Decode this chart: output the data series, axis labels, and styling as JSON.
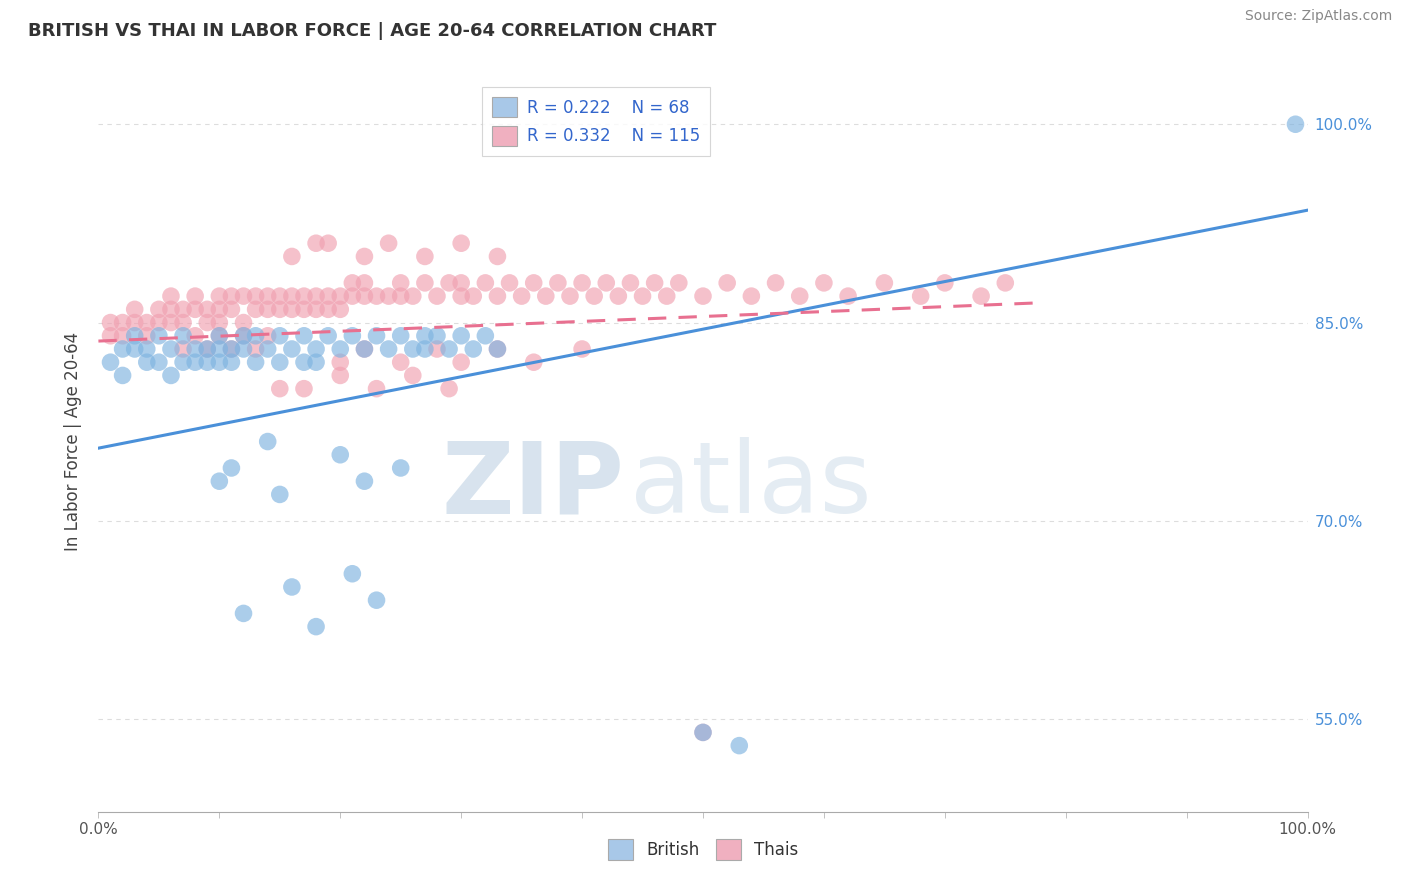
{
  "title": "BRITISH VS THAI IN LABOR FORCE | AGE 20-64 CORRELATION CHART",
  "source_text": "Source: ZipAtlas.com",
  "ylabel": "In Labor Force | Age 20-64",
  "xlim": [
    0.0,
    1.0
  ],
  "ylim": [
    0.48,
    1.04
  ],
  "right_ytick_labels": [
    "55.0%",
    "70.0%",
    "85.0%",
    "100.0%"
  ],
  "right_ytick_values": [
    0.55,
    0.7,
    0.85,
    1.0
  ],
  "british_color": "#7EB3E0",
  "thai_color": "#F0A0B0",
  "british_line_color": "#4A90D9",
  "thai_line_color": "#E87090",
  "legend_color_british": "#A8C8E8",
  "legend_color_thai": "#F0B0C0",
  "watermark_color": "#C8D8E8",
  "grid_color": "#DDDDDD",
  "british_scatter_x": [
    0.01,
    0.02,
    0.02,
    0.03,
    0.03,
    0.04,
    0.04,
    0.05,
    0.05,
    0.06,
    0.06,
    0.07,
    0.07,
    0.08,
    0.08,
    0.09,
    0.09,
    0.1,
    0.1,
    0.1,
    0.11,
    0.11,
    0.12,
    0.12,
    0.13,
    0.13,
    0.14,
    0.15,
    0.15,
    0.16,
    0.17,
    0.17,
    0.18,
    0.18,
    0.19,
    0.2,
    0.21,
    0.22,
    0.23,
    0.24,
    0.25,
    0.26,
    0.27,
    0.27,
    0.28,
    0.29,
    0.3,
    0.31,
    0.32,
    0.33,
    0.1,
    0.11,
    0.14,
    0.15,
    0.2,
    0.22,
    0.25,
    0.12,
    0.16,
    0.18,
    0.21,
    0.23,
    0.5,
    0.53,
    0.99
  ],
  "british_scatter_y": [
    0.82,
    0.81,
    0.83,
    0.83,
    0.84,
    0.82,
    0.83,
    0.84,
    0.82,
    0.81,
    0.83,
    0.82,
    0.84,
    0.83,
    0.82,
    0.83,
    0.82,
    0.83,
    0.82,
    0.84,
    0.83,
    0.82,
    0.84,
    0.83,
    0.82,
    0.84,
    0.83,
    0.82,
    0.84,
    0.83,
    0.82,
    0.84,
    0.83,
    0.82,
    0.84,
    0.83,
    0.84,
    0.83,
    0.84,
    0.83,
    0.84,
    0.83,
    0.84,
    0.83,
    0.84,
    0.83,
    0.84,
    0.83,
    0.84,
    0.83,
    0.73,
    0.74,
    0.76,
    0.72,
    0.75,
    0.73,
    0.74,
    0.63,
    0.65,
    0.62,
    0.66,
    0.64,
    0.54,
    0.53,
    1.0
  ],
  "thai_scatter_x": [
    0.01,
    0.01,
    0.02,
    0.02,
    0.03,
    0.03,
    0.04,
    0.04,
    0.05,
    0.05,
    0.06,
    0.06,
    0.06,
    0.07,
    0.07,
    0.08,
    0.08,
    0.09,
    0.09,
    0.1,
    0.1,
    0.1,
    0.11,
    0.11,
    0.12,
    0.12,
    0.13,
    0.13,
    0.14,
    0.14,
    0.15,
    0.15,
    0.16,
    0.16,
    0.17,
    0.17,
    0.18,
    0.18,
    0.19,
    0.19,
    0.2,
    0.2,
    0.21,
    0.21,
    0.22,
    0.22,
    0.23,
    0.24,
    0.25,
    0.25,
    0.26,
    0.27,
    0.28,
    0.29,
    0.3,
    0.3,
    0.31,
    0.32,
    0.33,
    0.34,
    0.35,
    0.36,
    0.37,
    0.38,
    0.39,
    0.4,
    0.41,
    0.42,
    0.43,
    0.44,
    0.45,
    0.46,
    0.47,
    0.48,
    0.5,
    0.52,
    0.54,
    0.56,
    0.58,
    0.6,
    0.62,
    0.65,
    0.68,
    0.7,
    0.73,
    0.75,
    0.07,
    0.08,
    0.09,
    0.1,
    0.11,
    0.12,
    0.13,
    0.14,
    0.2,
    0.22,
    0.25,
    0.28,
    0.3,
    0.33,
    0.36,
    0.4,
    0.16,
    0.18,
    0.19,
    0.22,
    0.24,
    0.27,
    0.3,
    0.33,
    0.15,
    0.17,
    0.2,
    0.23,
    0.26,
    0.29,
    0.5
  ],
  "thai_scatter_y": [
    0.84,
    0.85,
    0.84,
    0.85,
    0.85,
    0.86,
    0.84,
    0.85,
    0.85,
    0.86,
    0.85,
    0.86,
    0.87,
    0.85,
    0.86,
    0.86,
    0.87,
    0.85,
    0.86,
    0.87,
    0.86,
    0.85,
    0.87,
    0.86,
    0.85,
    0.87,
    0.86,
    0.87,
    0.86,
    0.87,
    0.86,
    0.87,
    0.86,
    0.87,
    0.86,
    0.87,
    0.86,
    0.87,
    0.87,
    0.86,
    0.87,
    0.86,
    0.87,
    0.88,
    0.87,
    0.88,
    0.87,
    0.87,
    0.87,
    0.88,
    0.87,
    0.88,
    0.87,
    0.88,
    0.87,
    0.88,
    0.87,
    0.88,
    0.87,
    0.88,
    0.87,
    0.88,
    0.87,
    0.88,
    0.87,
    0.88,
    0.87,
    0.88,
    0.87,
    0.88,
    0.87,
    0.88,
    0.87,
    0.88,
    0.87,
    0.88,
    0.87,
    0.88,
    0.87,
    0.88,
    0.87,
    0.88,
    0.87,
    0.88,
    0.87,
    0.88,
    0.83,
    0.84,
    0.83,
    0.84,
    0.83,
    0.84,
    0.83,
    0.84,
    0.82,
    0.83,
    0.82,
    0.83,
    0.82,
    0.83,
    0.82,
    0.83,
    0.9,
    0.91,
    0.91,
    0.9,
    0.91,
    0.9,
    0.91,
    0.9,
    0.8,
    0.8,
    0.81,
    0.8,
    0.81,
    0.8,
    0.54
  ],
  "brit_line_x0": 0.0,
  "brit_line_x1": 1.0,
  "brit_line_y0": 0.755,
  "brit_line_y1": 0.935,
  "thai_line_x0": 0.0,
  "thai_line_x1": 0.78,
  "thai_line_y0": 0.836,
  "thai_line_y1": 0.865
}
